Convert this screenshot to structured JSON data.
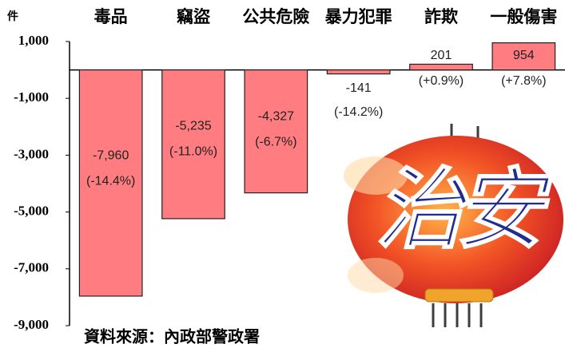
{
  "chart_data": {
    "type": "bar",
    "unit": "件",
    "categories": [
      "毒品",
      "竊盜",
      "公共危險",
      "暴力犯罪",
      "詐欺",
      "一般傷害"
    ],
    "values": [
      -7960,
      -5235,
      -4327,
      -141,
      201,
      954
    ],
    "value_labels": [
      "-7,960",
      "-5,235",
      "-4,327",
      "-141",
      "201",
      "954"
    ],
    "change_labels": [
      "(-14.4%)",
      "(-11.0%)",
      "(-6.7%)",
      "(-14.2%)",
      "(+0.9%)",
      "(+7.8%)"
    ],
    "color": "#ff7c80",
    "ylim": [
      -9000,
      1000
    ],
    "yticks": [
      {
        "value": 1000,
        "label": "1,000"
      },
      {
        "value": -1000,
        "label": "-1,000"
      },
      {
        "value": -3000,
        "label": "-3,000"
      },
      {
        "value": -5000,
        "label": "-5,000"
      },
      {
        "value": -7000,
        "label": "-7,000"
      },
      {
        "value": -9000,
        "label": "-9,000"
      }
    ],
    "source": "資料來源：內政部警政署",
    "image_text": "治安"
  }
}
